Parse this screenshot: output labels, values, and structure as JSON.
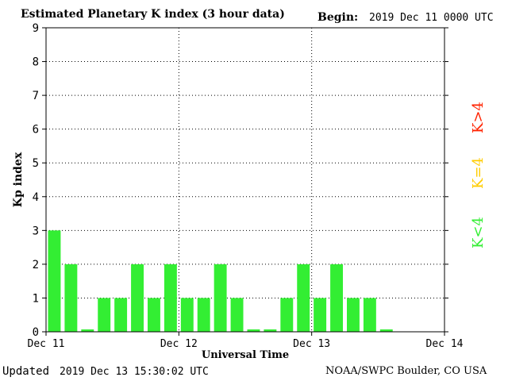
{
  "header": {
    "title": "Estimated Planetary K index (3 hour data)",
    "begin_label": "Begin:",
    "begin_value": "2019 Dec 11 0000 UTC"
  },
  "footer": {
    "updated_label": "Updated",
    "updated_value": "2019 Dec 13 15:30:02 UTC",
    "source": "NOAA/SWPC Boulder, CO USA"
  },
  "legend": {
    "items": [
      {
        "label": "K>4",
        "color": "#ff2200"
      },
      {
        "label": "K=4",
        "color": "#ffcc00"
      },
      {
        "label": "K<4",
        "color": "#33ee33"
      }
    ]
  },
  "chart_data": {
    "type": "bar",
    "title": "Estimated Planetary K index (3 hour data)",
    "xlabel": "Universal Time",
    "ylabel": "Kp index",
    "ylim": [
      0,
      9
    ],
    "yticks": [
      "0",
      "1",
      "2",
      "3",
      "4",
      "5",
      "6",
      "7",
      "8",
      "9"
    ],
    "xticks": [
      "Dec 11",
      "Dec 12",
      "Dec 13",
      "Dec 14"
    ],
    "slots_per_day": 8,
    "grid": true,
    "bar_color": "#33ee33",
    "values": [
      3,
      2,
      0.07,
      1,
      1,
      2,
      1,
      2,
      1,
      1,
      2,
      1,
      0.07,
      0.07,
      1,
      2,
      1,
      2,
      1,
      1,
      0.07
    ]
  }
}
